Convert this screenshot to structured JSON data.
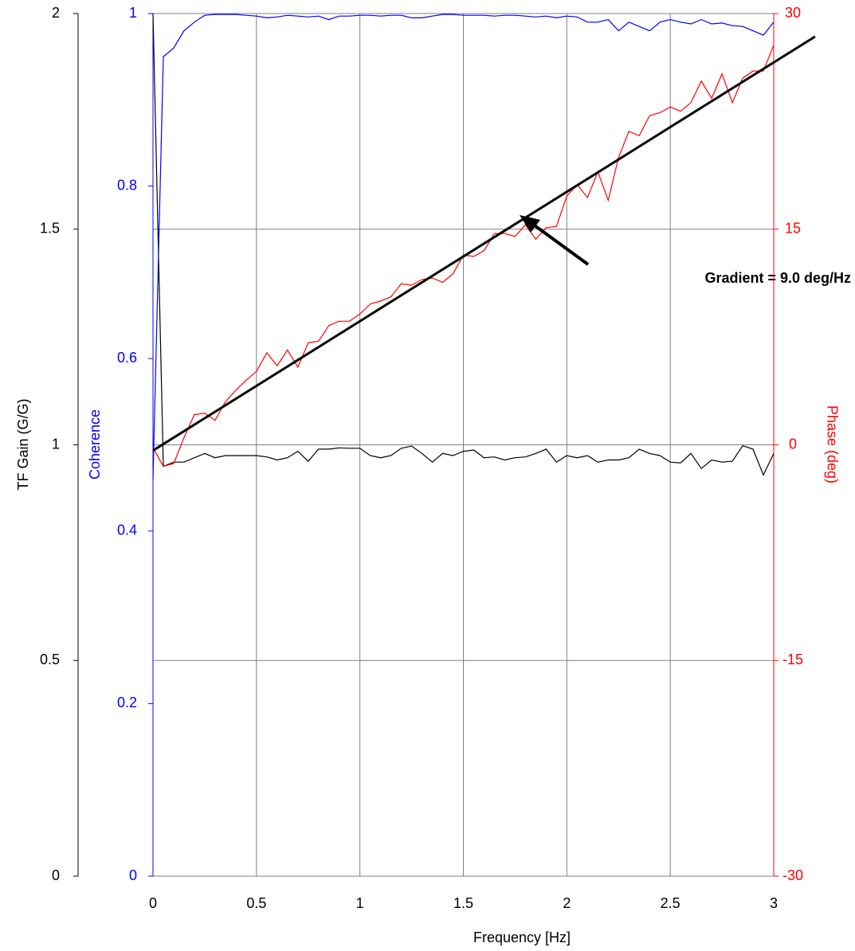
{
  "chart_data": {
    "type": "line",
    "xlabel": "Frequency [Hz]",
    "ylabel": "TF Gain (G/G)",
    "y2label": "Phase (deg)",
    "y3label": "Coherence",
    "annotation": "Gradient = 9.0 deg/Hz",
    "x": [
      0,
      0.05,
      0.1,
      0.15,
      0.2,
      0.25,
      0.3,
      0.35,
      0.4,
      0.45,
      0.5,
      0.55,
      0.6,
      0.65,
      0.7,
      0.75,
      0.8,
      0.85,
      0.9,
      0.95,
      1,
      1.05,
      1.1,
      1.15,
      1.2,
      1.25,
      1.3,
      1.35,
      1.4,
      1.45,
      1.5,
      1.55,
      1.6,
      1.65,
      1.7,
      1.75,
      1.8,
      1.85,
      1.9,
      1.95,
      2,
      2.05,
      2.1,
      2.15,
      2.2,
      2.25,
      2.3,
      2.35,
      2.4,
      2.45,
      2.5,
      2.55,
      2.6,
      2.65,
      2.7,
      2.75,
      2.8,
      2.85,
      2.9,
      2.95,
      3
    ],
    "series": [
      {
        "color": "#000000",
        "axis": "y",
        "values": [
          2,
          0.95,
          0.96,
          0.96,
          0.97,
          0.98,
          0.97,
          0.975,
          0.975,
          0.975,
          0.975,
          0.972,
          0.965,
          0.97,
          0.985,
          0.962,
          0.99,
          0.99,
          0.993,
          0.992,
          0.992,
          0.975,
          0.97,
          0.975,
          0.992,
          0.997,
          0.98,
          0.96,
          0.98,
          0.975,
          0.985,
          0.988,
          0.97,
          0.972,
          0.965,
          0.97,
          0.972,
          0.98,
          0.99,
          0.96,
          0.975,
          0.97,
          0.975,
          0.96,
          0.965,
          0.965,
          0.97,
          0.99,
          0.98,
          0.975,
          0.96,
          0.958,
          0.98,
          0.945,
          0.965,
          0.96,
          0.962,
          0.998,
          0.99,
          0.93,
          0.98
        ]
      },
      {
        "color": "#0000ff",
        "axis": "y3",
        "values": [
          0.46,
          0.95,
          0.96,
          0.98,
          0.99,
          0.998,
          0.999,
          0.999,
          0.999,
          0.998,
          0.997,
          0.995,
          0.996,
          0.998,
          0.997,
          0.996,
          0.997,
          0.993,
          0.997,
          0.997,
          0.998,
          0.998,
          0.997,
          0.998,
          0.998,
          0.995,
          0.995,
          0.997,
          0.999,
          0.999,
          0.998,
          0.998,
          0.998,
          0.997,
          0.998,
          0.998,
          0.997,
          0.996,
          0.997,
          0.995,
          0.997,
          0.996,
          0.99,
          0.99,
          0.993,
          0.98,
          0.99,
          0.985,
          0.98,
          0.99,
          0.993,
          0.99,
          0.988,
          0.993,
          0.988,
          0.989,
          0.986,
          0.985,
          0.98,
          0.975,
          0.99
        ]
      },
      {
        "color": "#ff0000",
        "axis": "y2",
        "values": [
          -0.2,
          -1.5,
          -1.3,
          0.5,
          2.1,
          2.2,
          1.7,
          3,
          3.8,
          4.5,
          5.1,
          6.4,
          5.5,
          6.6,
          5.4,
          7.1,
          7.2,
          8.3,
          8.6,
          8.6,
          9.1,
          9.8,
          10,
          10.3,
          11.2,
          11.1,
          11.5,
          11.6,
          11.3,
          11.9,
          13.2,
          13.1,
          13.5,
          14.7,
          14.7,
          14.5,
          15.3,
          14.3,
          15.1,
          15.2,
          17.3,
          18.1,
          17.2,
          19,
          17,
          20,
          21.8,
          21.5,
          22.9,
          23.1,
          23.5,
          23.2,
          23.8,
          25.3,
          24.1,
          25.8,
          23.8,
          25.5,
          26,
          26,
          27.8
        ]
      },
      {
        "color": "#000000",
        "axis": "y2",
        "width": 3,
        "x": [
          0,
          3.2
        ],
        "values": [
          -0.4,
          28.4
        ]
      }
    ],
    "xlim": [
      0,
      3
    ],
    "xticks": [
      0,
      0.5,
      1,
      1.5,
      2,
      2.5,
      3
    ],
    "ylim": [
      0,
      2
    ],
    "yticks": [
      0,
      0.5,
      1,
      1.5,
      2
    ],
    "y2lim": [
      -30,
      30
    ],
    "y2ticks": [
      -30,
      -15,
      0,
      15,
      30
    ],
    "y3lim": [
      0,
      1
    ],
    "y3ticks": [
      0,
      0.2,
      0.4,
      0.6,
      0.8,
      1
    ],
    "y3color": "#0000ff",
    "y2color": "#ff0000",
    "grid": true
  }
}
